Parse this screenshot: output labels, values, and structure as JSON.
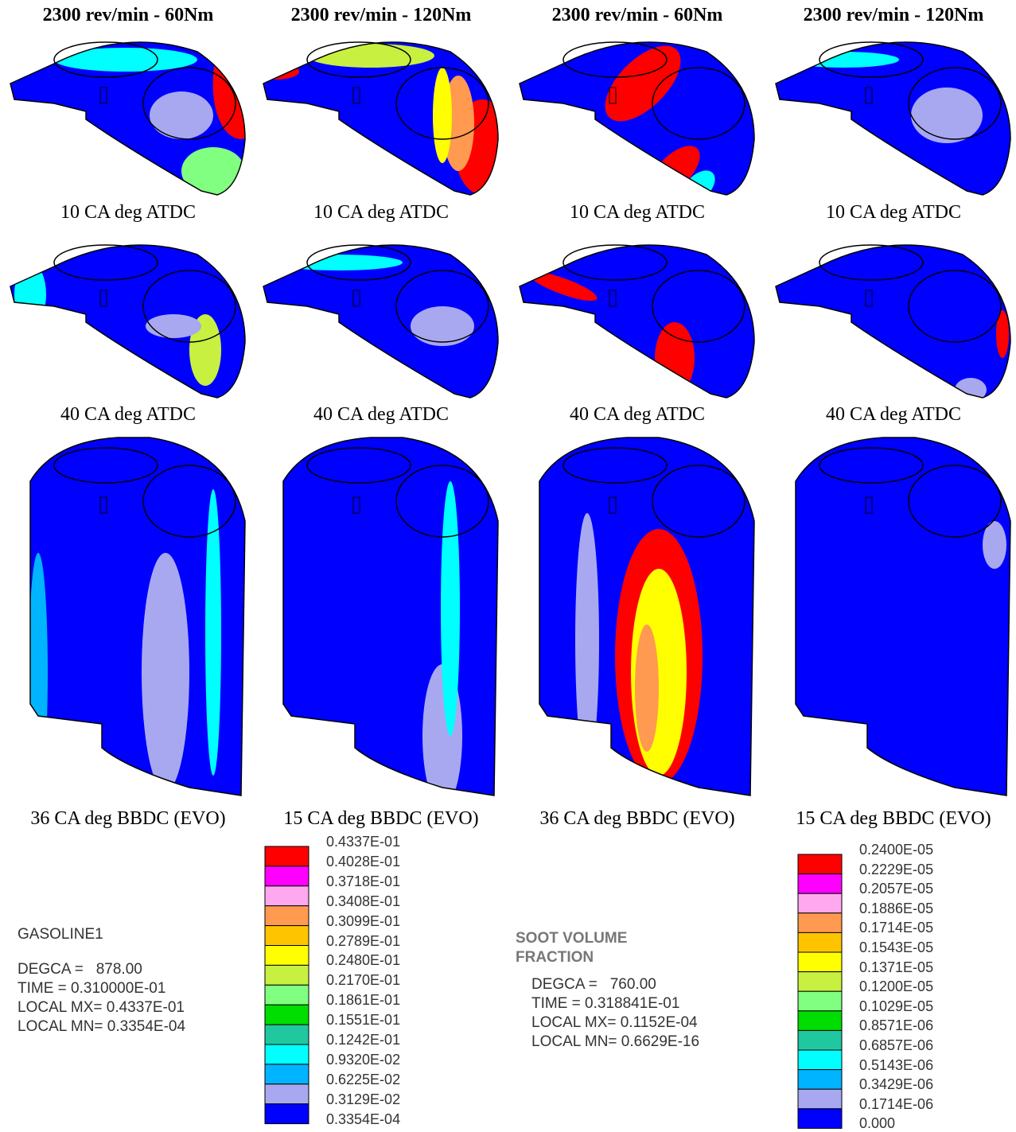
{
  "headers": [
    "2300 rev/min - 60Nm",
    "2300 rev/min - 120Nm",
    "2300 rev/min - 60Nm",
    "2300 rev/min - 120Nm"
  ],
  "row_captions": [
    [
      "10 CA deg ATDC",
      "10 CA deg ATDC",
      "10 CA deg ATDC",
      "10 CA deg ATDC"
    ],
    [
      "40 CA deg ATDC",
      "40 CA deg ATDC",
      "40 CA deg ATDC",
      "40 CA deg ATDC"
    ],
    [
      "36 CA deg BBDC (EVO)",
      "15 CA deg BBDC (EVO)",
      "36 CA deg BBDC (EVO)",
      "15 CA deg BBDC (EVO)"
    ]
  ],
  "legend_left": {
    "title": "GASOLINE1",
    "lines": [
      "DEGCA =   878.00",
      "TIME = 0.310000E-01",
      "LOCAL MX= 0.4337E-01",
      "LOCAL MN= 0.3354E-04"
    ],
    "levels": [
      "0.4337E-01",
      "0.4028E-01",
      "0.3718E-01",
      "0.3408E-01",
      "0.3099E-01",
      "0.2789E-01",
      "0.2480E-01",
      "0.2170E-01",
      "0.1861E-01",
      "0.1551E-01",
      "0.1242E-01",
      "0.9320E-02",
      "0.6225E-02",
      "0.3129E-02",
      "0.3354E-04"
    ]
  },
  "legend_right": {
    "title": "SOOT VOLUME FRACTION",
    "lines": [
      "DEGCA =   760.00",
      "TIME = 0.318841E-01",
      "LOCAL MX= 0.1152E-04",
      "LOCAL MN= 0.6629E-16"
    ],
    "levels": [
      "0.2400E-05",
      "0.2229E-05",
      "0.2057E-05",
      "0.1886E-05",
      "0.1714E-05",
      "0.1543E-05",
      "0.1371E-05",
      "0.1200E-05",
      "0.1029E-05",
      "0.8571E-06",
      "0.6857E-06",
      "0.5143E-06",
      "0.3429E-06",
      "0.1714E-06",
      "0.000"
    ]
  },
  "colors": [
    "#ff0000",
    "#ff00ff",
    "#ffa8f0",
    "#ff9a50",
    "#ffc400",
    "#ffff00",
    "#c8f040",
    "#80ff80",
    "#00dd00",
    "#20c8a0",
    "#00ffff",
    "#00b4ff",
    "#a8a8f0",
    "#0000ff"
  ]
}
